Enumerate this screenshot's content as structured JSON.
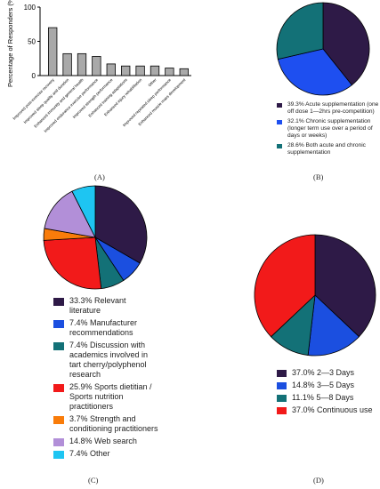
{
  "chart_data": [
    {
      "type": "bar",
      "ylabel": "Percentage of Responders (%)",
      "ylim": [
        0,
        100
      ],
      "yticks": [
        "0",
        "50",
        "100"
      ],
      "categories": [
        "Improved post-exercise recovery",
        "Improved sleep quality and duration",
        "Enhanced immunity and general health",
        "Improved endurance exercise performance",
        "Improved strength performance",
        "Enhanced training adaptations",
        "Enhanced injury rehabilitation",
        "Other",
        "Improved repeated sleep performance",
        "Enhanced muscle mass development"
      ],
      "values": [
        70,
        32,
        32,
        28,
        17,
        14,
        14,
        14,
        11,
        10
      ],
      "bar_color": "#a9a9a9",
      "panel_label": "(A)"
    },
    {
      "type": "pie",
      "slices": [
        {
          "label": "39.3% Acute supplementation (one off dose 1—2hrs pre-competition)",
          "value": 39.3,
          "color": "#2e1a47"
        },
        {
          "label": "32.1% Chronic supplementation (longer term use over a period of days or weeks)",
          "value": 32.1,
          "color": "#1e4ff0"
        },
        {
          "label": "28.6% Both acute and chronic supplementation",
          "value": 28.6,
          "color": "#137177"
        }
      ],
      "panel_label": "(B)"
    },
    {
      "type": "pie",
      "slices": [
        {
          "label": "33.3% Relevant literature",
          "value": 33.3,
          "color": "#2e1a47"
        },
        {
          "label": "7.4% Manufacturer recommendations",
          "value": 7.4,
          "color": "#1b4fe0"
        },
        {
          "label": "7.4% Discussion with academics involved in tart cherry/polyphenol research",
          "value": 7.4,
          "color": "#137177"
        },
        {
          "label": "25.9% Sports dietitian / Sports nutrition practitioners",
          "value": 25.9,
          "color": "#f21a1a"
        },
        {
          "label": "3.7% Strength and conditioning practitioners",
          "value": 3.7,
          "color": "#f97c0a"
        },
        {
          "label": "14.8% Web search",
          "value": 14.8,
          "color": "#b28fd8"
        },
        {
          "label": "7.4% Other",
          "value": 7.4,
          "color": "#1ec5f2"
        }
      ],
      "panel_label": "(C)"
    },
    {
      "type": "pie",
      "slices": [
        {
          "label": "37.0% 2—3 Days",
          "value": 37.0,
          "color": "#2e1a47"
        },
        {
          "label": "14.8% 3—5 Days",
          "value": 14.8,
          "color": "#1b4fe0"
        },
        {
          "label": "11.1% 5—8 Days",
          "value": 11.1,
          "color": "#137177"
        },
        {
          "label": "37.0% Continuous use",
          "value": 37.0,
          "color": "#f21a1a"
        }
      ],
      "panel_label": "(D)"
    }
  ]
}
